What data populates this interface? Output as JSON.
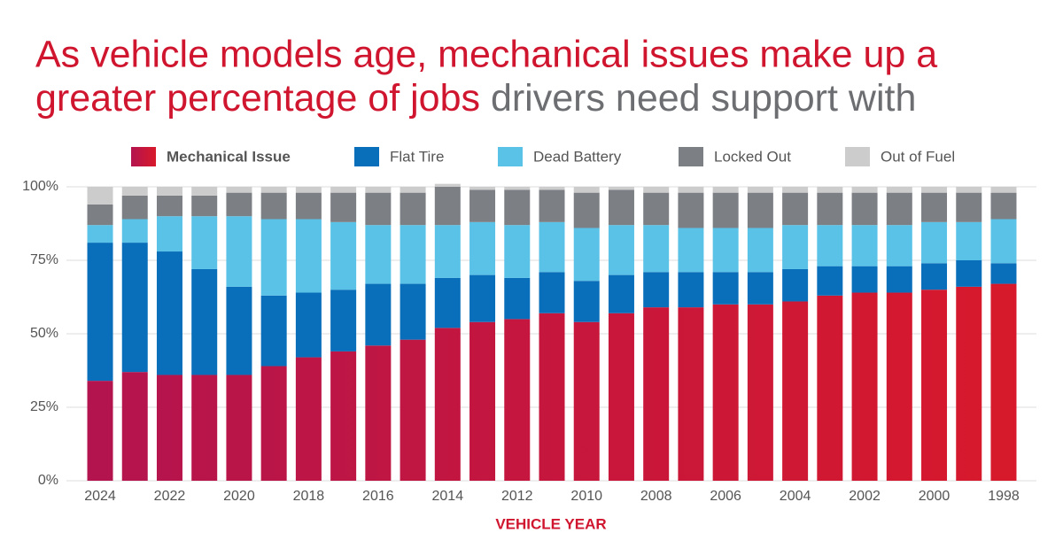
{
  "chart_data": {
    "type": "stacked_bar",
    "title": [
      "As vehicle models age, mechanical issues make up a",
      "greater percentage of jobs",
      "drivers need support with"
    ],
    "x_label": "VEHICLE YEAR",
    "categories": [
      "2024",
      null,
      "2022",
      null,
      "2020",
      null,
      "2018",
      null,
      "2016",
      null,
      "2014",
      null,
      "2012",
      null,
      "2010",
      null,
      "2008",
      null,
      "2006",
      null,
      "2004",
      null,
      "2002",
      null,
      "2000",
      null,
      "1998"
    ],
    "series": [
      {
        "name": "Mechanical Issue",
        "color": "#b3144f",
        "gradient_to": "#d8192b",
        "values": [
          34,
          37,
          36,
          36,
          36,
          39,
          42,
          44,
          46,
          48,
          52,
          54,
          55,
          57,
          54,
          57,
          59,
          59,
          60,
          60,
          61,
          63,
          64,
          64,
          65,
          66,
          67
        ]
      },
      {
        "name": "Flat Tire",
        "color": "#0a6fba",
        "values": [
          47,
          44,
          42,
          36,
          30,
          24,
          22,
          21,
          21,
          19,
          17,
          16,
          14,
          14,
          14,
          13,
          12,
          12,
          11,
          11,
          11,
          10,
          9,
          9,
          9,
          9,
          7
        ]
      },
      {
        "name": "Dead Battery",
        "color": "#5bc2e7",
        "values": [
          6,
          8,
          12,
          18,
          24,
          26,
          25,
          23,
          20,
          20,
          18,
          18,
          18,
          17,
          18,
          17,
          16,
          15,
          15,
          15,
          15,
          14,
          14,
          14,
          14,
          13,
          15
        ]
      },
      {
        "name": "Locked Out",
        "color": "#7c7f84",
        "values": [
          7,
          8,
          7,
          7,
          8,
          9,
          9,
          10,
          11,
          11,
          13,
          11,
          12,
          11,
          12,
          12,
          11,
          12,
          12,
          12,
          11,
          11,
          11,
          11,
          10,
          10,
          9
        ]
      },
      {
        "name": "Out of Fuel",
        "color": "#cccccc",
        "values": [
          6,
          3,
          3,
          3,
          2,
          2,
          2,
          2,
          2,
          2,
          1,
          1,
          1,
          1,
          2,
          1,
          2,
          2,
          2,
          2,
          2,
          2,
          2,
          2,
          2,
          2,
          2
        ]
      }
    ],
    "title_colors": [
      "#d0152f",
      "#d0152f",
      "#6d6e71"
    ],
    "ylim": [
      0,
      100
    ],
    "yticks": [
      {
        "value": 0,
        "label": "0%"
      },
      {
        "value": 25,
        "label": "25%"
      },
      {
        "value": 50,
        "label": "50%"
      },
      {
        "value": 75,
        "label": "75%"
      },
      {
        "value": 100,
        "label": "100%"
      }
    ],
    "grid": true
  }
}
